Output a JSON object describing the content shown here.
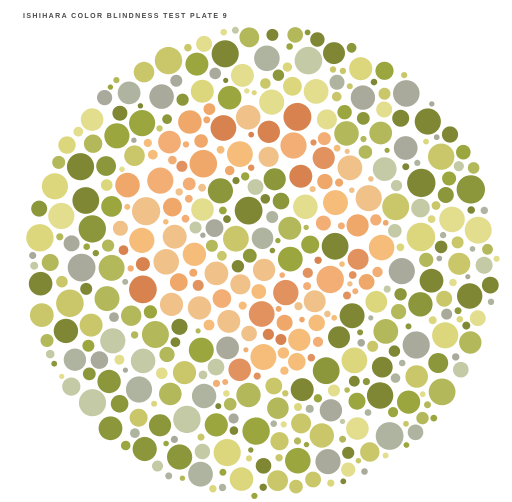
{
  "title": "ISHIHARA COLOR BLINDNESS TEST PLATE 9",
  "palette": {
    "background_dots": [
      "#8c963a",
      "#9ba63f",
      "#b3b85a",
      "#c9c769",
      "#dcd77c",
      "#e3dd8e",
      "#c4c9a6",
      "#aeb4a0",
      "#a9aa9b",
      "#7f8735"
    ],
    "figure_dots": [
      "#e2925f",
      "#efa86a",
      "#f6bd7a",
      "#f2ae74",
      "#d8834f",
      "#f0c189"
    ]
  },
  "plate": {
    "hidden_numeral": "9"
  }
}
